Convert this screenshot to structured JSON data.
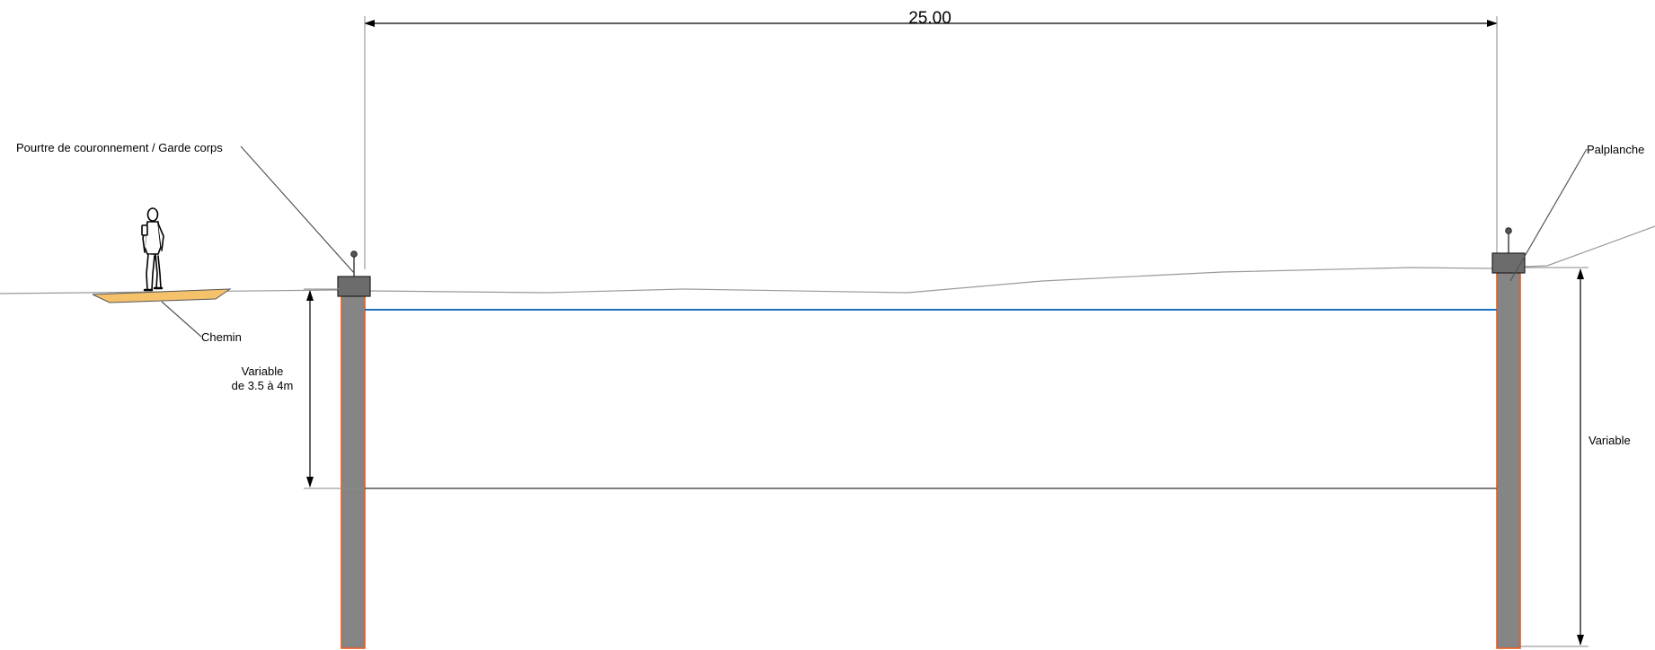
{
  "dimensions": {
    "width_label": "25.00",
    "left_depth_label_line1": "Variable",
    "left_depth_label_line2": "de 3.5 à 4m",
    "right_depth_label": "Variable"
  },
  "callouts": {
    "left_beam": "Pourtre de couronnement / Garde corps",
    "right_sheet_pile": "Palplanche",
    "path": "Chemin"
  },
  "colors": {
    "sheet_pile_fill": "#858585",
    "sheet_pile_outline": "#ee5a1e",
    "cap_beam_fill": "#6c6c6c",
    "water_line": "#1f6fc8",
    "path_fill": "#f5c26b",
    "ground_line": "#9a9a9a",
    "dimension_line": "#000000"
  },
  "icons": {
    "person": "pedestrian-figure-icon",
    "railing_post_left": "guardrail-post-icon",
    "railing_post_right": "guardrail-post-icon"
  }
}
